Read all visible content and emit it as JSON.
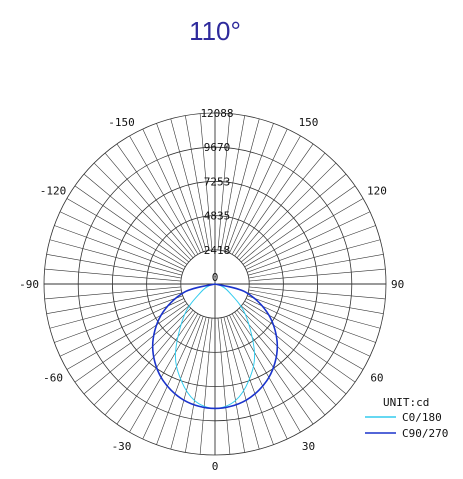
{
  "chart_data": {
    "type": "polar",
    "title": "110°",
    "unit_label": "UNIT:cd",
    "radial_max": 12088,
    "ring_values": [
      2418,
      4835,
      7253,
      9670,
      12088
    ],
    "angle_labels": [
      "0",
      "30",
      "60",
      "90",
      "120",
      "150",
      "-150",
      "-120",
      "-90",
      "-60",
      "-30"
    ],
    "spoke_step_deg": 5,
    "grid": true,
    "legend_position": "bottom-right",
    "series": [
      {
        "name": "C0/180",
        "color": "#33ccee",
        "points": [
          [
            -110,
            0
          ],
          [
            -75,
            380
          ],
          [
            -60,
            1150
          ],
          [
            -45,
            3030
          ],
          [
            -30,
            5580
          ],
          [
            -20,
            7130
          ],
          [
            -10,
            8360
          ],
          [
            0,
            8800
          ],
          [
            10,
            8360
          ],
          [
            20,
            7130
          ],
          [
            30,
            5580
          ],
          [
            45,
            3030
          ],
          [
            60,
            1150
          ],
          [
            75,
            380
          ],
          [
            110,
            0
          ]
        ]
      },
      {
        "name": "C90/270",
        "color": "#1a33cc",
        "points": [
          [
            -90,
            0
          ],
          [
            -75,
            2260
          ],
          [
            -60,
            4400
          ],
          [
            -45,
            6230
          ],
          [
            -30,
            7620
          ],
          [
            -15,
            8500
          ],
          [
            0,
            8800
          ],
          [
            15,
            8500
          ],
          [
            30,
            7620
          ],
          [
            45,
            6230
          ],
          [
            60,
            4400
          ],
          [
            75,
            2260
          ],
          [
            90,
            0
          ]
        ]
      }
    ]
  }
}
